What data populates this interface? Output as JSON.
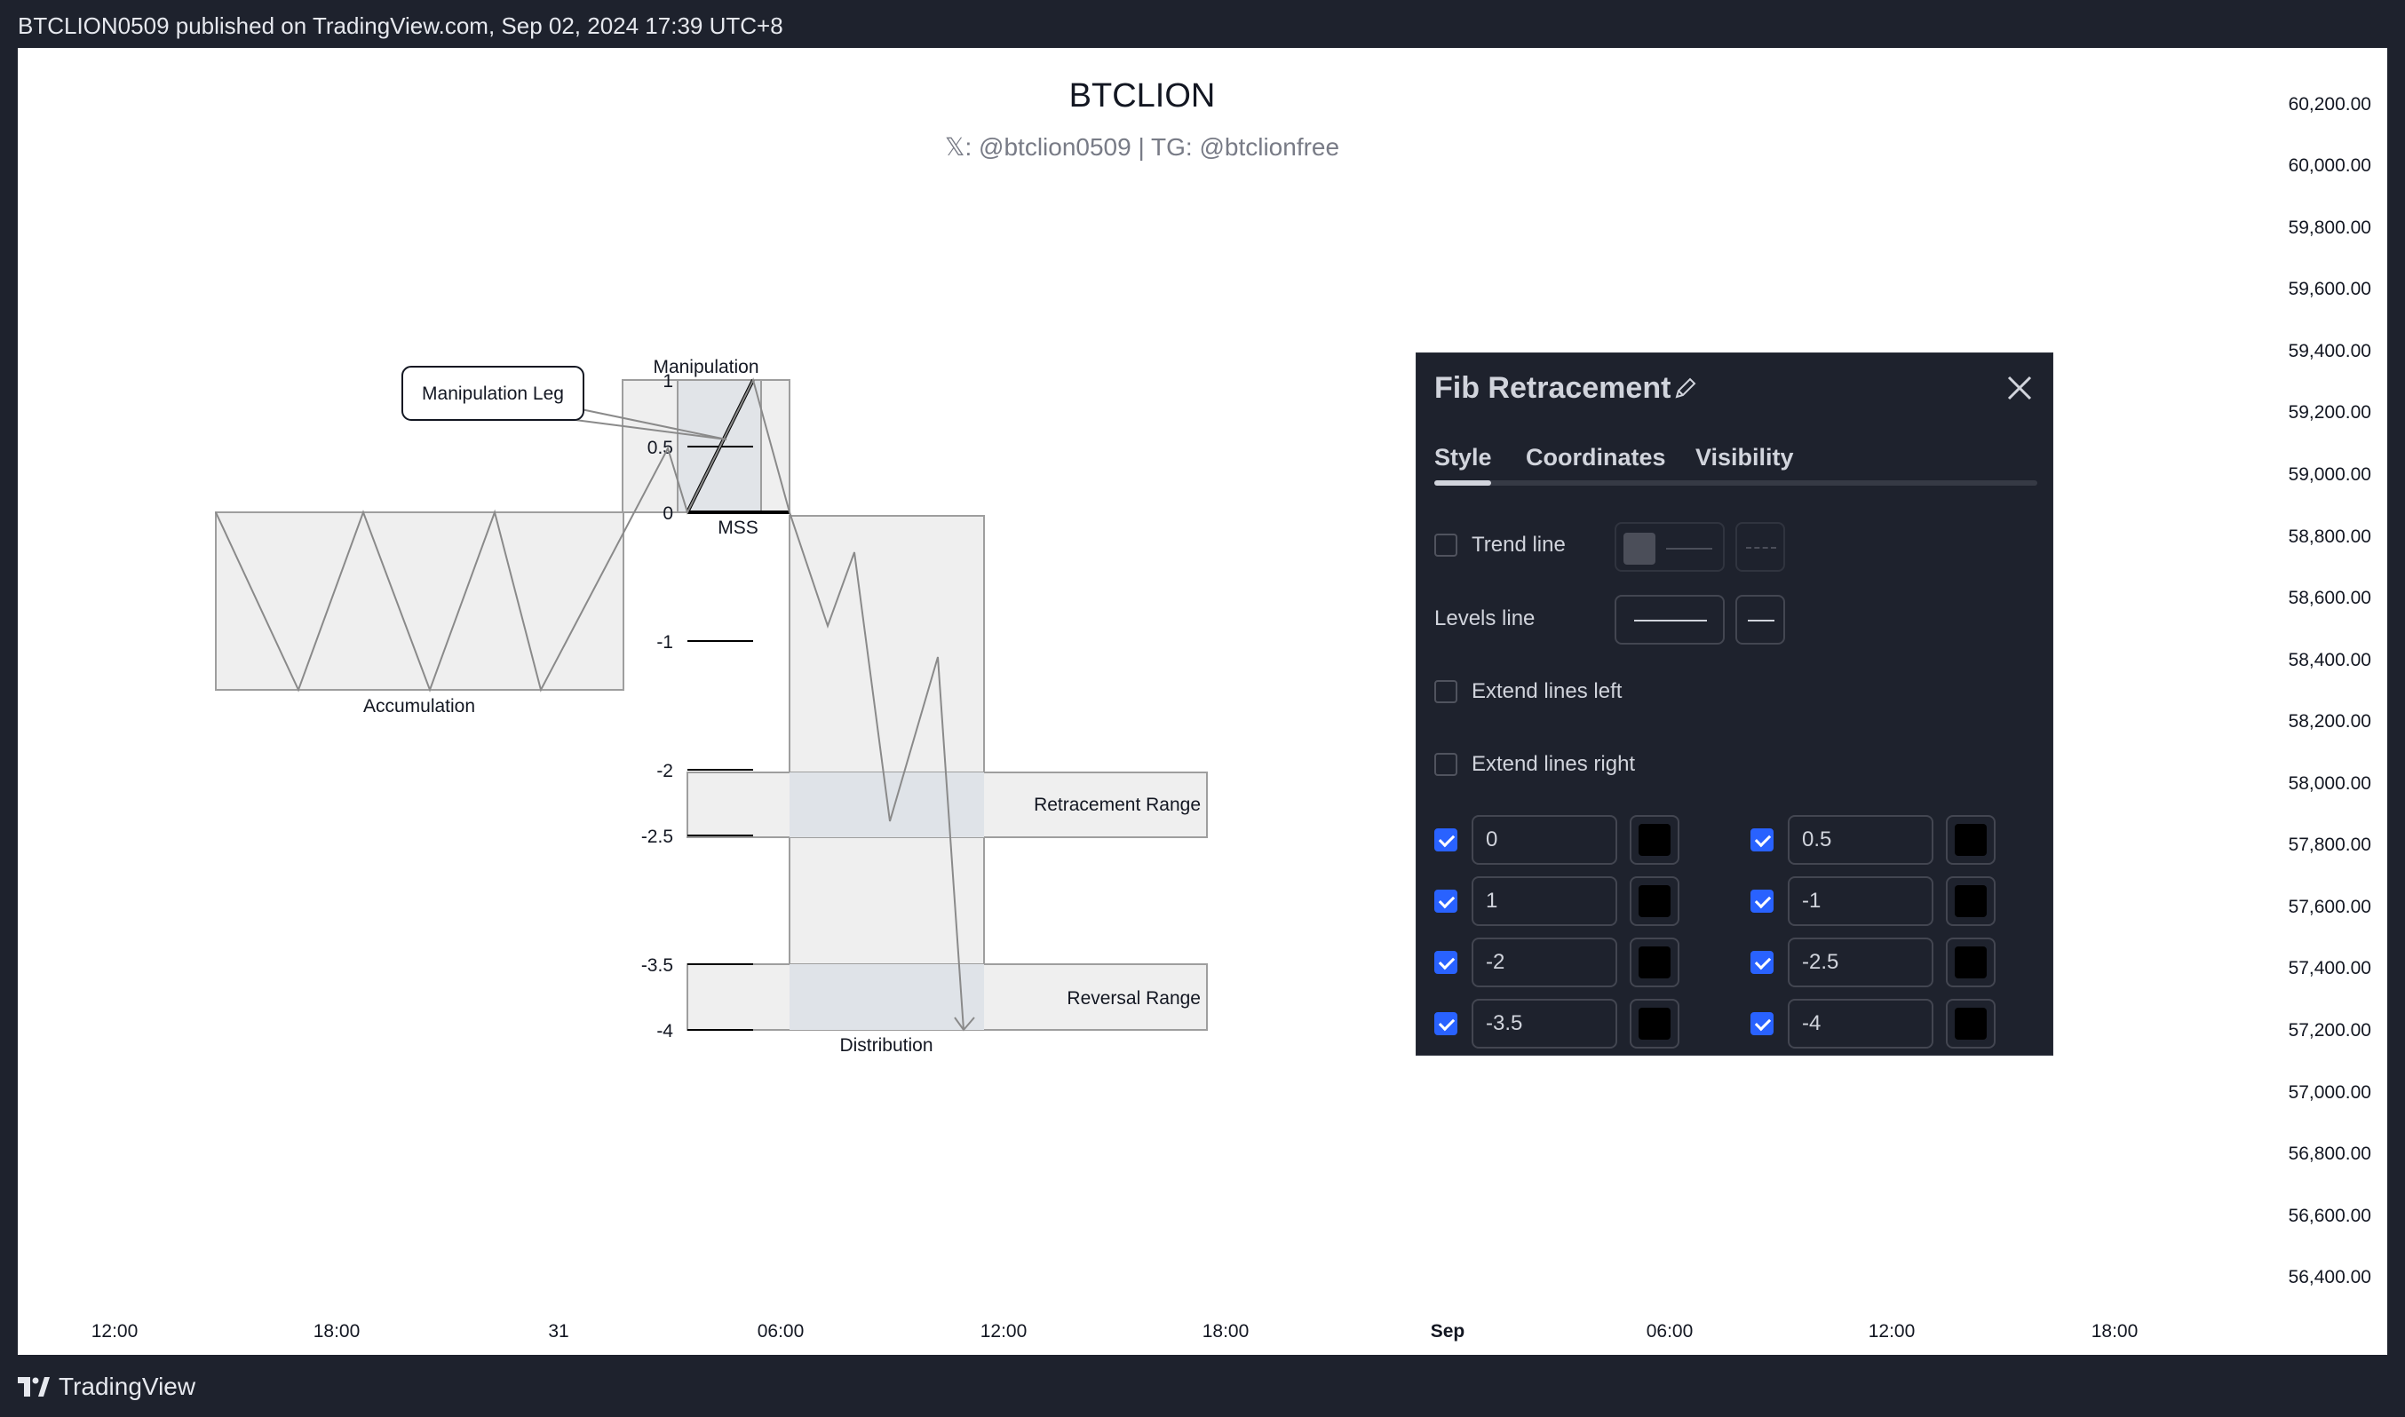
{
  "header": {
    "published": "BTCLION0509 published on TradingView.com, Sep 02, 2024 17:39 UTC+8"
  },
  "footer": {
    "brand": "TradingView"
  },
  "chart": {
    "title": "BTCLION",
    "subtitle": "𝕏: @btclion0509 | TG: @btclionfree",
    "price_axis": [
      "60,200.00",
      "60,000.00",
      "59,800.00",
      "59,600.00",
      "59,400.00",
      "59,200.00",
      "59,000.00",
      "58,800.00",
      "58,600.00",
      "58,400.00",
      "58,200.00",
      "58,000.00",
      "57,800.00",
      "57,600.00",
      "57,400.00",
      "57,200.00",
      "57,000.00",
      "56,800.00",
      "56,600.00",
      "56,400.00"
    ],
    "time_axis": [
      "12:00",
      "18:00",
      "31",
      "06:00",
      "12:00",
      "18:00",
      "Sep",
      "06:00",
      "12:00",
      "18:00"
    ],
    "annotations": {
      "manipulation": "Manipulation",
      "manipulation_leg": "Manipulation Leg",
      "mss": "MSS",
      "accumulation": "Accumulation",
      "distribution": "Distribution",
      "retracement_range": "Retracement Range",
      "reversal_range": "Reversal Range"
    },
    "fib_labels": [
      "1",
      "0.5",
      "0",
      "-1",
      "-2",
      "-2.5",
      "-3.5",
      "-4"
    ]
  },
  "fib_panel": {
    "title": "Fib Retracement",
    "tabs": [
      "Style",
      "Coordinates",
      "Visibility"
    ],
    "active_tab": "Style",
    "trend_line": {
      "label": "Trend line",
      "checked": false
    },
    "levels_line": {
      "label": "Levels line"
    },
    "extend_left": {
      "label": "Extend lines left",
      "checked": false
    },
    "extend_right": {
      "label": "Extend lines right",
      "checked": false
    },
    "levels": [
      {
        "value": "0",
        "checked": true,
        "color": "#000000"
      },
      {
        "value": "0.5",
        "checked": true,
        "color": "#000000"
      },
      {
        "value": "1",
        "checked": true,
        "color": "#000000"
      },
      {
        "value": "-1",
        "checked": true,
        "color": "#000000"
      },
      {
        "value": "-2",
        "checked": true,
        "color": "#000000"
      },
      {
        "value": "-2.5",
        "checked": true,
        "color": "#000000"
      },
      {
        "value": "-3.5",
        "checked": true,
        "color": "#000000"
      },
      {
        "value": "-4",
        "checked": true,
        "color": "#000000"
      }
    ]
  },
  "colors": {
    "accent": "#2962ff",
    "panel_bg": "#1e222d"
  }
}
